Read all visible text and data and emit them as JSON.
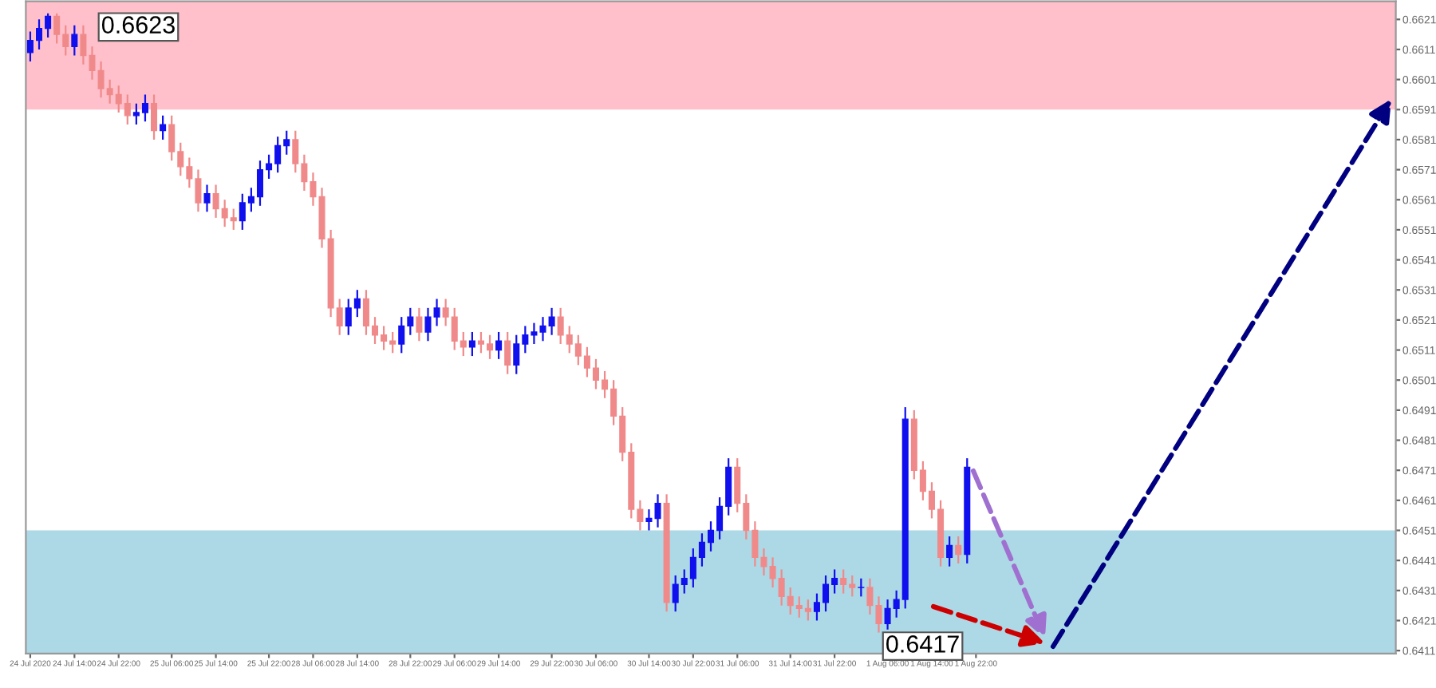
{
  "chart_data": {
    "type": "candlestick",
    "categories": [
      "24 Jul 2020",
      null,
      null,
      null,
      null,
      "24 Jul 14:00",
      null,
      null,
      null,
      null,
      "24 Jul 22:00",
      null,
      null,
      null,
      null,
      null,
      "25 Jul 06:00",
      null,
      null,
      null,
      null,
      "25 Jul 14:00",
      null,
      null,
      null,
      null,
      null,
      "25 Jul 22:00",
      null,
      null,
      null,
      null,
      "28 Jul 06:00",
      null,
      null,
      null,
      null,
      "28 Jul 14:00",
      null,
      null,
      null,
      null,
      null,
      "28 Jul 22:00",
      null,
      null,
      null,
      null,
      "29 Jul 06:00",
      null,
      null,
      null,
      null,
      "29 Jul 14:00",
      null,
      null,
      null,
      null,
      null,
      "29 Jul 22:00",
      null,
      null,
      null,
      null,
      "30 Jul 06:00",
      null,
      null,
      null,
      null,
      null,
      "30 Jul 14:00",
      null,
      null,
      null,
      null,
      "30 Jul 22:00",
      null,
      null,
      null,
      null,
      "31 Jul 06:00",
      null,
      null,
      null,
      null,
      null,
      "31 Jul 14:00",
      null,
      null,
      null,
      null,
      "31 Jul 22:00",
      null,
      null,
      null,
      null,
      null,
      "1 Aug 06:00",
      null,
      null,
      null,
      null,
      "1 Aug 14:00",
      null,
      null,
      null,
      null,
      "1 Aug 22:00",
      null,
      null,
      null,
      null,
      null,
      null,
      null,
      null,
      null,
      null,
      null,
      null,
      null,
      null,
      null,
      null,
      null,
      null,
      null,
      null,
      null,
      null,
      null,
      null,
      null,
      null,
      null,
      null,
      null,
      null,
      null,
      null,
      null,
      null,
      null,
      null,
      null,
      null,
      null,
      null,
      null,
      null,
      null,
      null,
      null,
      null,
      null
    ],
    "ohlc": [
      [
        0.661,
        0.6617,
        0.6607,
        0.6614
      ],
      [
        0.6614,
        0.6621,
        0.6611,
        0.6618
      ],
      [
        0.6618,
        0.6623,
        0.6615,
        0.6622
      ],
      [
        0.6622,
        0.6623,
        0.6613,
        0.6616
      ],
      [
        0.6616,
        0.6619,
        0.6609,
        0.6612
      ],
      [
        0.6612,
        0.6619,
        0.6609,
        0.6616
      ],
      [
        0.6616,
        0.6619,
        0.6606,
        0.6609
      ],
      [
        0.6609,
        0.6612,
        0.6601,
        0.6604
      ],
      [
        0.6604,
        0.6607,
        0.6595,
        0.6598
      ],
      [
        0.6598,
        0.6601,
        0.6593,
        0.6596
      ],
      [
        0.6596,
        0.6599,
        0.659,
        0.6593
      ],
      [
        0.6593,
        0.6596,
        0.6586,
        0.6589
      ],
      [
        0.6589,
        0.6593,
        0.6586,
        0.659
      ],
      [
        0.659,
        0.6596,
        0.6587,
        0.6593
      ],
      [
        0.6593,
        0.6596,
        0.6581,
        0.6584
      ],
      [
        0.6584,
        0.6589,
        0.6581,
        0.6586
      ],
      [
        0.6586,
        0.6589,
        0.6574,
        0.6577
      ],
      [
        0.6577,
        0.658,
        0.6569,
        0.6572
      ],
      [
        0.6572,
        0.6575,
        0.6565,
        0.6568
      ],
      [
        0.6568,
        0.6571,
        0.6557,
        0.656
      ],
      [
        0.656,
        0.6566,
        0.6557,
        0.6563
      ],
      [
        0.6563,
        0.6566,
        0.6555,
        0.6558
      ],
      [
        0.6558,
        0.6561,
        0.6552,
        0.6555
      ],
      [
        0.6555,
        0.6558,
        0.6551,
        0.6554
      ],
      [
        0.6554,
        0.6563,
        0.6551,
        0.656
      ],
      [
        0.656,
        0.6565,
        0.6557,
        0.6562
      ],
      [
        0.6562,
        0.6574,
        0.6559,
        0.6571
      ],
      [
        0.6571,
        0.6576,
        0.6568,
        0.6573
      ],
      [
        0.6573,
        0.6582,
        0.657,
        0.6579
      ],
      [
        0.6579,
        0.6584,
        0.6576,
        0.6581
      ],
      [
        0.6581,
        0.6584,
        0.657,
        0.6573
      ],
      [
        0.6573,
        0.6576,
        0.6564,
        0.6567
      ],
      [
        0.6567,
        0.657,
        0.6559,
        0.6562
      ],
      [
        0.6562,
        0.6565,
        0.6545,
        0.6548
      ],
      [
        0.6548,
        0.6551,
        0.6522,
        0.6525
      ],
      [
        0.6525,
        0.6528,
        0.6516,
        0.6519
      ],
      [
        0.6519,
        0.6528,
        0.6516,
        0.6525
      ],
      [
        0.6525,
        0.6531,
        0.6522,
        0.6528
      ],
      [
        0.6528,
        0.6531,
        0.6516,
        0.6519
      ],
      [
        0.6519,
        0.6522,
        0.6513,
        0.6516
      ],
      [
        0.6516,
        0.6519,
        0.6511,
        0.6514
      ],
      [
        0.6514,
        0.6517,
        0.651,
        0.6513
      ],
      [
        0.6513,
        0.6522,
        0.651,
        0.6519
      ],
      [
        0.6519,
        0.6525,
        0.6516,
        0.6522
      ],
      [
        0.6522,
        0.6525,
        0.6514,
        0.6517
      ],
      [
        0.6517,
        0.6525,
        0.6514,
        0.6522
      ],
      [
        0.6522,
        0.6528,
        0.6519,
        0.6525
      ],
      [
        0.6525,
        0.6528,
        0.6519,
        0.6522
      ],
      [
        0.6522,
        0.6525,
        0.6511,
        0.6514
      ],
      [
        0.6514,
        0.6517,
        0.6509,
        0.6512
      ],
      [
        0.6512,
        0.6517,
        0.6509,
        0.6514
      ],
      [
        0.6514,
        0.6517,
        0.651,
        0.6513
      ],
      [
        0.6513,
        0.6516,
        0.6508,
        0.6511
      ],
      [
        0.6511,
        0.6517,
        0.6508,
        0.6514
      ],
      [
        0.6514,
        0.6517,
        0.6503,
        0.6506
      ],
      [
        0.6506,
        0.6516,
        0.6503,
        0.6513
      ],
      [
        0.6513,
        0.6519,
        0.651,
        0.6516
      ],
      [
        0.6516,
        0.652,
        0.6513,
        0.6517
      ],
      [
        0.6517,
        0.6522,
        0.6514,
        0.6519
      ],
      [
        0.6519,
        0.6525,
        0.6516,
        0.6522
      ],
      [
        0.6522,
        0.6525,
        0.6513,
        0.6516
      ],
      [
        0.6516,
        0.6519,
        0.651,
        0.6513
      ],
      [
        0.6513,
        0.6516,
        0.6506,
        0.6509
      ],
      [
        0.6509,
        0.6512,
        0.6502,
        0.6505
      ],
      [
        0.6505,
        0.6508,
        0.6498,
        0.6501
      ],
      [
        0.6501,
        0.6504,
        0.6495,
        0.6498
      ],
      [
        0.6498,
        0.6501,
        0.6486,
        0.6489
      ],
      [
        0.6489,
        0.6492,
        0.6474,
        0.6477
      ],
      [
        0.6477,
        0.648,
        0.6455,
        0.6458
      ],
      [
        0.6458,
        0.6461,
        0.6451,
        0.6454
      ],
      [
        0.6454,
        0.6458,
        0.6451,
        0.6455
      ],
      [
        0.6455,
        0.6463,
        0.6452,
        0.646
      ],
      [
        0.646,
        0.6463,
        0.6424,
        0.6427
      ],
      [
        0.6427,
        0.6436,
        0.6424,
        0.6433
      ],
      [
        0.6433,
        0.6438,
        0.643,
        0.6435
      ],
      [
        0.6435,
        0.6445,
        0.6432,
        0.6442
      ],
      [
        0.6442,
        0.645,
        0.6439,
        0.6447
      ],
      [
        0.6447,
        0.6454,
        0.6444,
        0.6451
      ],
      [
        0.6451,
        0.6462,
        0.6448,
        0.6459
      ],
      [
        0.6459,
        0.6475,
        0.6456,
        0.6472
      ],
      [
        0.6472,
        0.6475,
        0.6457,
        0.646
      ],
      [
        0.646,
        0.6463,
        0.6448,
        0.6451
      ],
      [
        0.6451,
        0.6454,
        0.6439,
        0.6442
      ],
      [
        0.6442,
        0.6445,
        0.6436,
        0.6439
      ],
      [
        0.6439,
        0.6442,
        0.6432,
        0.6435
      ],
      [
        0.6435,
        0.6438,
        0.6426,
        0.6429
      ],
      [
        0.6429,
        0.6432,
        0.6423,
        0.6426
      ],
      [
        0.6426,
        0.6429,
        0.6422,
        0.6425
      ],
      [
        0.6425,
        0.6428,
        0.6421,
        0.6424
      ],
      [
        0.6424,
        0.643,
        0.6421,
        0.6427
      ],
      [
        0.6427,
        0.6436,
        0.6424,
        0.6433
      ],
      [
        0.6433,
        0.6438,
        0.643,
        0.6435
      ],
      [
        0.6435,
        0.6438,
        0.643,
        0.6433
      ],
      [
        0.6433,
        0.6436,
        0.6429,
        0.6432
      ],
      [
        0.6432,
        0.6435,
        0.6429,
        0.6432
      ],
      [
        0.6432,
        0.6435,
        0.6423,
        0.6426
      ],
      [
        0.6426,
        0.6429,
        0.6417,
        0.642
      ],
      [
        0.642,
        0.6428,
        0.6418,
        0.6425
      ],
      [
        0.6425,
        0.6431,
        0.6422,
        0.6428
      ],
      [
        0.6428,
        0.6492,
        0.6425,
        0.6488
      ],
      [
        0.6488,
        0.6491,
        0.6468,
        0.6471
      ],
      [
        0.6471,
        0.6474,
        0.6461,
        0.6464
      ],
      [
        0.6464,
        0.6467,
        0.6455,
        0.6458
      ],
      [
        0.6458,
        0.6461,
        0.6439,
        0.6442
      ],
      [
        0.6442,
        0.6449,
        0.6439,
        0.6446
      ],
      [
        0.6446,
        0.6449,
        0.644,
        0.6443
      ],
      [
        0.6443,
        0.6475,
        0.644,
        0.6472
      ],
      null,
      null,
      null,
      null,
      null,
      null,
      null,
      null,
      null,
      null,
      null,
      null,
      null,
      null,
      null,
      null,
      null,
      null,
      null,
      null,
      null,
      null,
      null,
      null,
      null,
      null,
      null,
      null,
      null,
      null,
      null,
      null,
      null,
      null,
      null,
      null,
      null,
      null,
      null,
      null,
      null,
      null,
      null,
      null,
      null,
      null,
      null,
      null
    ],
    "colors": [
      "#1010ee",
      "#1010ee",
      "#1010ee",
      "#f08a8a",
      "#f08a8a",
      "#1010ee",
      "#f08a8a",
      "#f08a8a",
      "#f08a8a",
      "#f08a8a",
      "#f08a8a",
      "#f08a8a",
      "#1010ee",
      "#1010ee",
      "#f08a8a",
      "#1010ee",
      "#f08a8a",
      "#f08a8a",
      "#f08a8a",
      "#f08a8a",
      "#1010ee",
      "#f08a8a",
      "#f08a8a",
      "#f08a8a",
      "#1010ee",
      "#1010ee",
      "#1010ee",
      "#1010ee",
      "#1010ee",
      "#1010ee",
      "#f08a8a",
      "#f08a8a",
      "#f08a8a",
      "#f08a8a",
      "#f08a8a",
      "#f08a8a",
      "#1010ee",
      "#1010ee",
      "#f08a8a",
      "#f08a8a",
      "#f08a8a",
      "#f08a8a",
      "#1010ee",
      "#1010ee",
      "#f08a8a",
      "#1010ee",
      "#1010ee",
      "#f08a8a",
      "#f08a8a",
      "#f08a8a",
      "#1010ee",
      "#f08a8a",
      "#f08a8a",
      "#1010ee",
      "#f08a8a",
      "#1010ee",
      "#1010ee",
      "#1010ee",
      "#1010ee",
      "#1010ee",
      "#f08a8a",
      "#f08a8a",
      "#f08a8a",
      "#f08a8a",
      "#f08a8a",
      "#f08a8a",
      "#f08a8a",
      "#f08a8a",
      "#f08a8a",
      "#f08a8a",
      "#1010ee",
      "#1010ee",
      "#f08a8a",
      "#1010ee",
      "#1010ee",
      "#1010ee",
      "#1010ee",
      "#1010ee",
      "#1010ee",
      "#1010ee",
      "#f08a8a",
      "#f08a8a",
      "#f08a8a",
      "#f08a8a",
      "#f08a8a",
      "#f08a8a",
      "#f08a8a",
      "#f08a8a",
      "#f08a8a",
      "#1010ee",
      "#1010ee",
      "#1010ee",
      "#f08a8a",
      "#f08a8a",
      "#1010ee",
      "#f08a8a",
      "#f08a8a",
      "#1010ee",
      "#1010ee",
      "#1010ee",
      "#f08a8a",
      "#f08a8a",
      "#f08a8a",
      "#f08a8a",
      "#1010ee",
      "#f08a8a",
      "#1010ee",
      null,
      null,
      null,
      null,
      null,
      null,
      null,
      null,
      null,
      null,
      null,
      null,
      null,
      null,
      null,
      null,
      null,
      null,
      null,
      null,
      null,
      null,
      null,
      null,
      null,
      null,
      null,
      null,
      null,
      null,
      null,
      null,
      null,
      null,
      null,
      null,
      null,
      null,
      null,
      null,
      null,
      null,
      null,
      null,
      null,
      null,
      null,
      null
    ],
    "bands": [
      {
        "axis": "y",
        "from": 0.6591,
        "to": 0.6627,
        "color": "#ffc0cb"
      },
      {
        "axis": "y",
        "from": 0.641,
        "to": 0.6451,
        "color": "#add8e6"
      }
    ],
    "annotations": [
      "0.6623",
      "0.6417"
    ],
    "ylim": [
      0.641,
      0.6627
    ],
    "yticks": [
      0.6411,
      0.6421,
      0.6431,
      0.6441,
      0.6451,
      0.6461,
      0.6471,
      0.6481,
      0.6491,
      0.6501,
      0.6511,
      0.6521,
      0.6531,
      0.6541,
      0.6551,
      0.6561,
      0.6571,
      0.6581,
      0.6591,
      0.6601,
      0.6611,
      0.6621
    ]
  }
}
